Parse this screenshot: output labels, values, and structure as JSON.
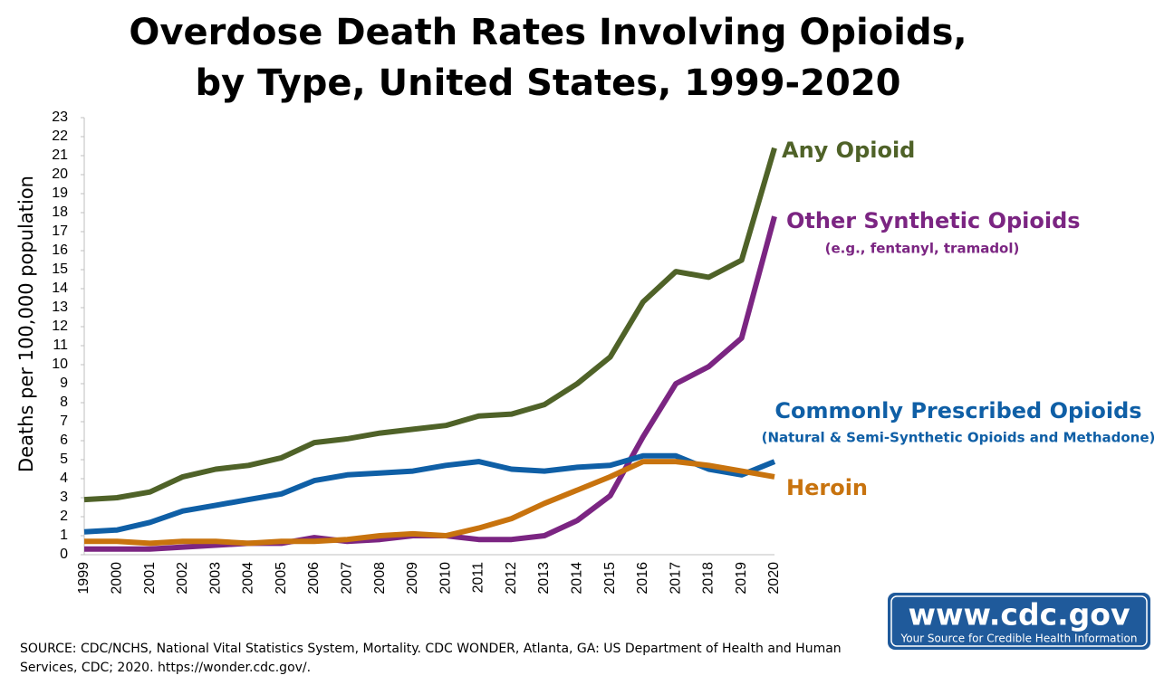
{
  "chart_data": {
    "type": "line",
    "title": [
      "Overdose Death Rates Involving Opioids,",
      "by Type, United States, 1999-2020"
    ],
    "y_label": "Deaths per 100,000 population",
    "categories": [
      "1999",
      "2000",
      "2001",
      "2002",
      "2003",
      "2004",
      "2005",
      "2006",
      "2007",
      "2008",
      "2009",
      "2010",
      "2011",
      "2012",
      "2013",
      "2014",
      "2015",
      "2016",
      "2017",
      "2018",
      "2019",
      "2020"
    ],
    "ylim": [
      0,
      23
    ],
    "yticks": [
      0,
      1,
      2,
      3,
      4,
      5,
      6,
      7,
      8,
      9,
      10,
      11,
      12,
      13,
      14,
      15,
      16,
      17,
      18,
      19,
      20,
      21,
      22,
      23
    ],
    "series": [
      {
        "name": "Any Opioid",
        "color": "#4f6228",
        "values": [
          2.9,
          3.0,
          3.3,
          4.1,
          4.5,
          4.7,
          5.1,
          5.9,
          6.1,
          6.4,
          6.6,
          6.8,
          7.3,
          7.4,
          7.9,
          9.0,
          10.4,
          13.3,
          14.9,
          14.6,
          15.5,
          21.4
        ]
      },
      {
        "name": "Other Synthetic Opioids",
        "description": "(e.g., fentanyl, tramadol)",
        "color": "#7b2582",
        "values": [
          0.3,
          0.3,
          0.3,
          0.4,
          0.5,
          0.6,
          0.6,
          0.9,
          0.7,
          0.8,
          1.0,
          1.0,
          0.8,
          0.8,
          1.0,
          1.8,
          3.1,
          6.2,
          9.0,
          9.9,
          11.4,
          17.8
        ]
      },
      {
        "name": "Commonly Prescribed Opioids",
        "description": "(Natural & Semi-Synthetic Opioids and Methadone)",
        "color": "#0f5fa6",
        "values": [
          1.2,
          1.3,
          1.7,
          2.3,
          2.6,
          2.9,
          3.2,
          3.9,
          4.2,
          4.3,
          4.4,
          4.7,
          4.9,
          4.5,
          4.4,
          4.6,
          4.7,
          5.2,
          5.2,
          4.5,
          4.2,
          4.9
        ]
      },
      {
        "name": "Heroin",
        "color": "#c8730e",
        "values": [
          0.7,
          0.7,
          0.6,
          0.7,
          0.7,
          0.6,
          0.7,
          0.7,
          0.8,
          1.0,
          1.1,
          1.0,
          1.4,
          1.9,
          2.7,
          3.4,
          4.1,
          4.9,
          4.9,
          4.7,
          4.4,
          4.1
        ]
      }
    ],
    "source": [
      "SOURCE: CDC/NCHS, National Vital Statistics System, Mortality. CDC WONDER, Atlanta, GA: US Department of Health and Human",
      "Services, CDC; 2020. https://wonder.cdc.gov/."
    ],
    "logo": {
      "text": "www.cdc.gov",
      "tagline": "Your Source for Credible Health Information"
    }
  }
}
